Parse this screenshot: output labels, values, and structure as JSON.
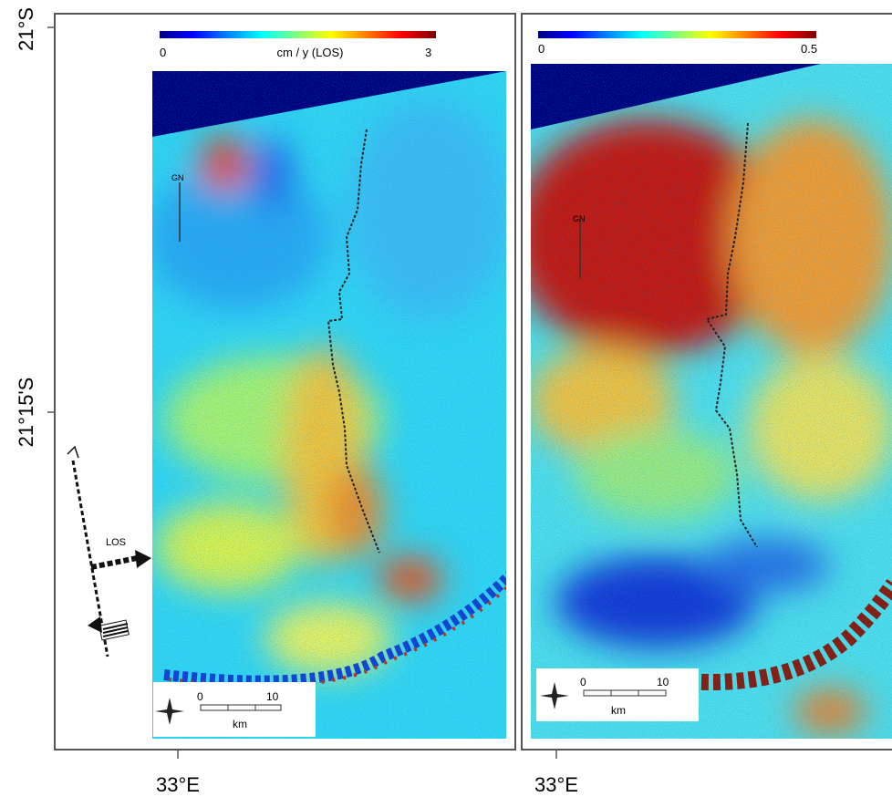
{
  "axes": {
    "y_labels": [
      "21°S",
      "21°15'S"
    ],
    "x_labels": [
      "33°E",
      "33°E"
    ]
  },
  "annotation": "LOS",
  "panels": [
    {
      "colorbar": {
        "min": "0",
        "max": "3",
        "label": "cm / y (LOS)"
      },
      "marker": "GN",
      "scale": {
        "start": "0",
        "end": "10",
        "unit": "km"
      }
    },
    {
      "colorbar": {
        "min": "0",
        "max": "0.5"
      },
      "marker": "GN",
      "scale": {
        "start": "0",
        "end": "10",
        "unit": "km"
      }
    }
  ]
}
